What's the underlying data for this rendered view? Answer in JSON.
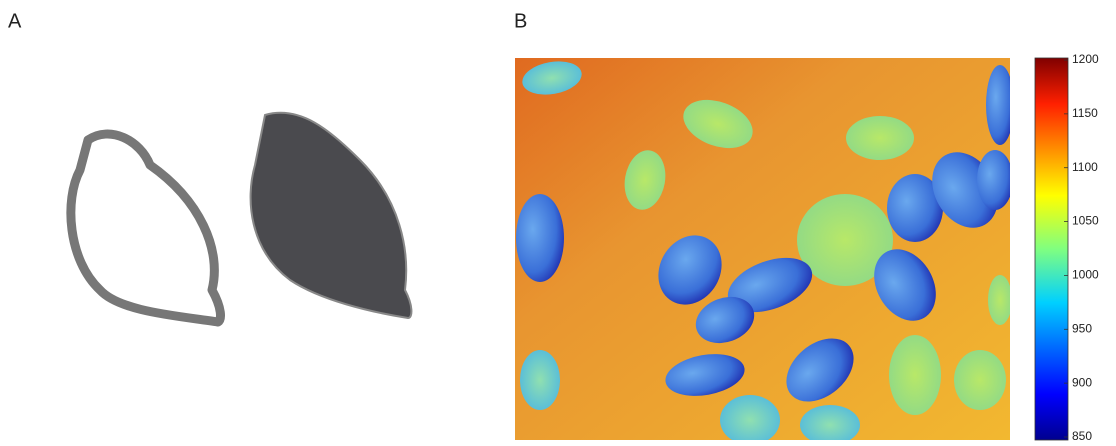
{
  "panels": [
    {
      "label": "A"
    },
    {
      "label": "B",
      "colorbar": {
        "lim": [
          850,
          1200
        ],
        "ticks": [
          1200,
          1150,
          1100,
          1050,
          1000,
          950,
          900,
          850
        ]
      }
    }
  ]
}
